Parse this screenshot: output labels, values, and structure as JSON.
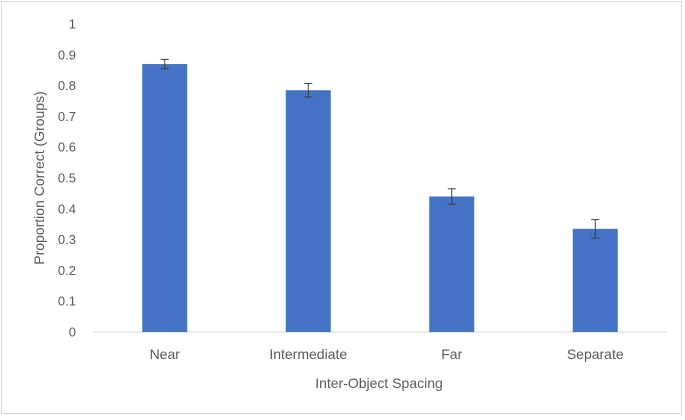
{
  "chart_data": {
    "type": "bar",
    "categories": [
      "Near",
      "Intermediate",
      "Far",
      "Separate"
    ],
    "series": [
      {
        "values": [
          0.87,
          0.785,
          0.44,
          0.335
        ],
        "errors": [
          0.015,
          0.022,
          0.025,
          0.03
        ],
        "color": "#4472c4"
      }
    ],
    "title": "",
    "xlabel": "Inter-Object Spacing",
    "ylabel": "Proportion Correct (Groups)",
    "ylim": [
      0,
      1
    ],
    "yticks": [
      "0",
      "0.1",
      "0.2",
      "0.3",
      "0.4",
      "0.5",
      "0.6",
      "0.7",
      "0.8",
      "0.9",
      "1"
    ],
    "grid": false,
    "legend": "none",
    "axis_color": "#d9d9d9",
    "error_bar_color": "#404040"
  }
}
